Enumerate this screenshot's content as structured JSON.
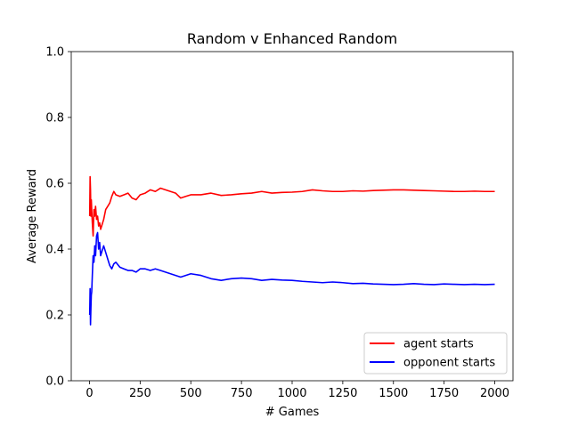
{
  "chart_data": {
    "type": "line",
    "title": "Random v Enhanced Random",
    "xlabel": "# Games",
    "ylabel": "Average Reward",
    "xlim": [
      -90,
      2090
    ],
    "ylim": [
      0.0,
      1.0
    ],
    "xticks": [
      0,
      250,
      500,
      750,
      1000,
      1250,
      1500,
      1750,
      2000
    ],
    "yticks": [
      0.0,
      0.2,
      0.4,
      0.6,
      0.8,
      1.0
    ],
    "grid": false,
    "legend_position": "lower-right",
    "series": [
      {
        "name": "agent starts",
        "color": "#ff0000",
        "x": [
          1,
          3,
          5,
          7,
          9,
          11,
          14,
          18,
          22,
          26,
          30,
          35,
          40,
          45,
          50,
          55,
          60,
          70,
          80,
          90,
          100,
          110,
          120,
          130,
          150,
          170,
          190,
          210,
          230,
          250,
          275,
          300,
          325,
          350,
          375,
          400,
          425,
          450,
          475,
          500,
          550,
          600,
          650,
          700,
          750,
          800,
          850,
          900,
          950,
          1000,
          1050,
          1100,
          1150,
          1200,
          1250,
          1300,
          1350,
          1400,
          1450,
          1500,
          1550,
          1600,
          1650,
          1700,
          1750,
          1800,
          1850,
          1900,
          1950,
          2000
        ],
        "y": [
          0.5,
          0.62,
          0.58,
          0.5,
          0.55,
          0.52,
          0.48,
          0.44,
          0.52,
          0.5,
          0.53,
          0.49,
          0.5,
          0.47,
          0.48,
          0.46,
          0.47,
          0.49,
          0.52,
          0.53,
          0.54,
          0.56,
          0.575,
          0.565,
          0.56,
          0.565,
          0.57,
          0.555,
          0.55,
          0.565,
          0.57,
          0.58,
          0.575,
          0.585,
          0.58,
          0.575,
          0.57,
          0.555,
          0.56,
          0.565,
          0.565,
          0.57,
          0.563,
          0.565,
          0.568,
          0.57,
          0.575,
          0.57,
          0.572,
          0.573,
          0.575,
          0.58,
          0.577,
          0.575,
          0.575,
          0.577,
          0.576,
          0.578,
          0.579,
          0.58,
          0.58,
          0.579,
          0.578,
          0.577,
          0.576,
          0.575,
          0.575,
          0.576,
          0.575,
          0.575
        ]
      },
      {
        "name": "opponent starts",
        "color": "#0000ff",
        "x": [
          1,
          3,
          5,
          7,
          9,
          11,
          14,
          18,
          22,
          26,
          30,
          35,
          40,
          45,
          50,
          55,
          60,
          70,
          80,
          90,
          100,
          110,
          120,
          130,
          150,
          170,
          190,
          210,
          230,
          250,
          275,
          300,
          325,
          350,
          375,
          400,
          425,
          450,
          475,
          500,
          550,
          600,
          650,
          700,
          750,
          800,
          850,
          900,
          950,
          1000,
          1050,
          1100,
          1150,
          1200,
          1250,
          1300,
          1350,
          1400,
          1450,
          1500,
          1550,
          1600,
          1650,
          1700,
          1750,
          1800,
          1850,
          1900,
          1950,
          2000
        ],
        "y": [
          0.2,
          0.28,
          0.17,
          0.22,
          0.26,
          0.27,
          0.32,
          0.38,
          0.36,
          0.41,
          0.38,
          0.44,
          0.45,
          0.4,
          0.42,
          0.38,
          0.39,
          0.41,
          0.39,
          0.37,
          0.35,
          0.34,
          0.355,
          0.36,
          0.345,
          0.34,
          0.335,
          0.335,
          0.33,
          0.34,
          0.34,
          0.335,
          0.34,
          0.335,
          0.33,
          0.325,
          0.32,
          0.315,
          0.32,
          0.325,
          0.32,
          0.31,
          0.305,
          0.31,
          0.312,
          0.31,
          0.305,
          0.308,
          0.306,
          0.305,
          0.302,
          0.3,
          0.298,
          0.3,
          0.298,
          0.295,
          0.296,
          0.294,
          0.293,
          0.292,
          0.293,
          0.295,
          0.293,
          0.292,
          0.294,
          0.293,
          0.292,
          0.293,
          0.292,
          0.293
        ]
      }
    ]
  }
}
